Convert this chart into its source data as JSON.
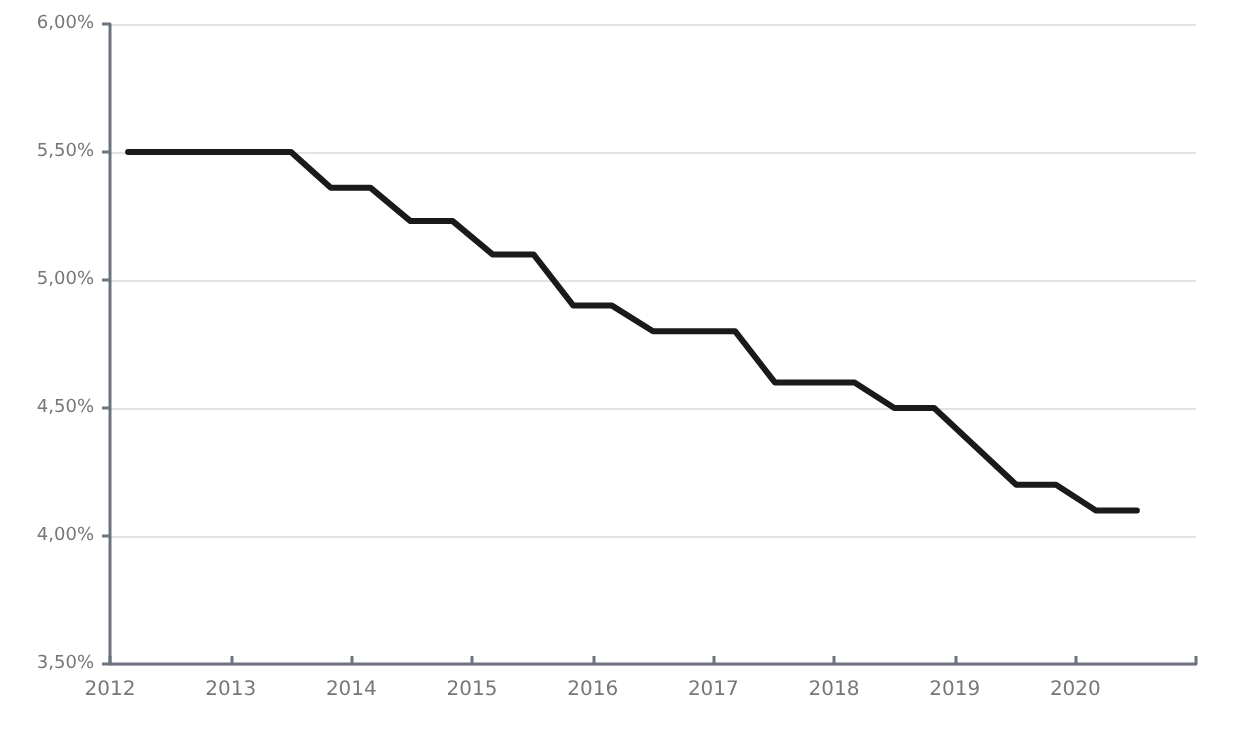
{
  "chart_data": {
    "type": "line",
    "x": [
      2012.15,
      2013.5,
      2013.83,
      2014.16,
      2014.49,
      2014.84,
      2015.17,
      2015.51,
      2015.84,
      2016.16,
      2016.5,
      2017.18,
      2017.51,
      2018.17,
      2018.5,
      2018.83,
      2019.51,
      2019.84,
      2020.17,
      2020.51
    ],
    "series": [
      {
        "color": "#1a1a1a",
        "values": [
          5.5,
          5.5,
          5.36,
          5.36,
          5.23,
          5.23,
          5.1,
          5.1,
          4.9,
          4.9,
          4.8,
          4.8,
          4.6,
          4.6,
          4.5,
          4.5,
          4.2,
          4.2,
          4.1,
          4.1
        ]
      }
    ],
    "xlim": [
      2012,
      2021
    ],
    "xticks": [
      2012,
      2013,
      2014,
      2015,
      2016,
      2017,
      2018,
      2019,
      2020,
      {
        "value": 2021,
        "label": null
      }
    ],
    "ylim": [
      3.5,
      6
    ],
    "yticks": [
      {
        "value": 3.5,
        "label": "3,50%"
      },
      {
        "value": 4,
        "label": "4,00%"
      },
      {
        "value": 4.5,
        "label": "4,50%"
      },
      {
        "value": 5,
        "label": "5,00%"
      },
      {
        "value": 5.5,
        "label": "5,50%"
      },
      {
        "value": 6,
        "label": "6,00%"
      }
    ],
    "grid": "y",
    "marker": "none",
    "line_style": "solid"
  }
}
